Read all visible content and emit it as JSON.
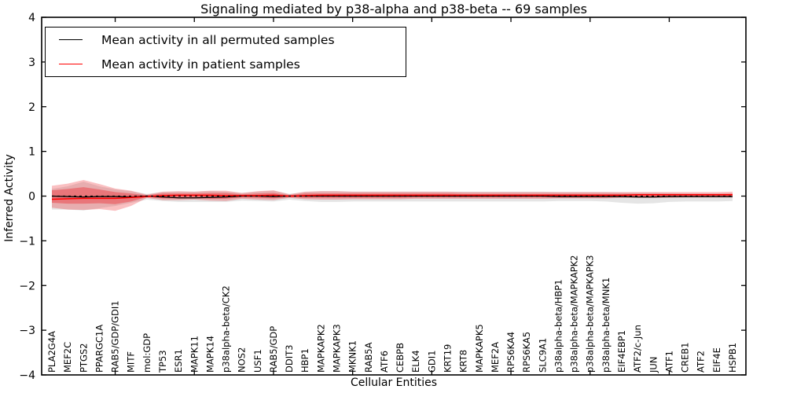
{
  "title": "Signaling mediated by p38-alpha and p38-beta -- 69 samples",
  "legend": {
    "items": [
      {
        "label": "Mean activity in all permuted samples",
        "color": "#000000"
      },
      {
        "label": "Mean activity in patient samples",
        "color": "#ff0000"
      }
    ]
  },
  "chart_data": {
    "type": "line",
    "title": "Signaling mediated by p38-alpha and p38-beta -- 69 samples",
    "xlabel": "Cellular Entities",
    "ylabel": "Inferred Activity",
    "ylim": [
      -4,
      4
    ],
    "grid": false,
    "legend_position": "upper-left",
    "ytick_values": [
      4,
      3,
      2,
      1,
      0,
      -1,
      -2,
      -3,
      -4
    ],
    "ytick_labels": [
      "4",
      "3",
      "2",
      "1",
      "0",
      "−1",
      "−2",
      "−3",
      "−4"
    ],
    "xtick_indices": [
      4,
      9,
      14,
      19,
      24,
      29,
      34,
      39
    ],
    "categories": [
      "PLA2G4A",
      "MEF2C",
      "PTGS2",
      "PPARGC1A",
      "RAB5/GDP/GDI1",
      "MITF",
      "mol:GDP",
      "TP53",
      "ESR1",
      "MAPK11",
      "MAPK14",
      "p38alpha-beta/CK2",
      "NOS2",
      "USF1",
      "RAB5/GDP",
      "DDIT3",
      "HBP1",
      "MAPKAPK2",
      "MAPKAPK3",
      "MKNK1",
      "RAB5A",
      "ATF6",
      "CEBPB",
      "ELK4",
      "GDI1",
      "KRT19",
      "KRT8",
      "MAPKAPK5",
      "MEF2A",
      "RPS6KA4",
      "RPS6KA5",
      "SLC9A1",
      "p38alpha-beta/HBP1",
      "p38alpha-beta/MAPKAPK2",
      "p38alpha-beta/MAPKAPK3",
      "p38alpha-beta/MNK1",
      "EIF4EBP1",
      "ATF2/c-Jun",
      "JUN",
      "ATF1",
      "CREB1",
      "ATF2",
      "EIF4E",
      "HSPB1"
    ],
    "series": [
      {
        "name": "Mean activity in all permuted samples",
        "color": "#000000",
        "values": [
          0,
          -0.01,
          -0.02,
          -0.01,
          -0.01,
          -0.02,
          0,
          -0.02,
          -0.04,
          -0.04,
          -0.03,
          -0.02,
          0,
          0,
          -0.01,
          0,
          0,
          0,
          0,
          0,
          0,
          0,
          0,
          0,
          0,
          0,
          0,
          0,
          0,
          0,
          0,
          0,
          -0.01,
          -0.01,
          -0.01,
          -0.01,
          -0.01,
          -0.02,
          -0.02,
          -0.01,
          -0.01,
          -0.01,
          -0.01,
          -0.01
        ]
      },
      {
        "name": "Mean activity in patient samples",
        "color": "#ff0000",
        "values": [
          -0.07,
          -0.06,
          -0.05,
          -0.05,
          -0.05,
          -0.03,
          -0.01,
          0.01,
          0.02,
          0.02,
          0.02,
          0.01,
          0.01,
          0.01,
          0.02,
          0,
          0.01,
          0.02,
          0.02,
          0.02,
          0.02,
          0.02,
          0.02,
          0.02,
          0.02,
          0.02,
          0.02,
          0.02,
          0.02,
          0.02,
          0.02,
          0.02,
          0.02,
          0.02,
          0.02,
          0.02,
          0.02,
          0.03,
          0.03,
          0.03,
          0.03,
          0.03,
          0.03,
          0.03
        ]
      }
    ],
    "bands": [
      {
        "name": "permuted-samples-range",
        "color": "rgba(110,110,110,0.18)",
        "upper": [
          0.16,
          0.22,
          0.32,
          0.22,
          0.15,
          0.11,
          0.05,
          0.09,
          0.1,
          0.1,
          0.11,
          0.1,
          0.07,
          0.1,
          0.12,
          0.05,
          0.09,
          0.11,
          0.11,
          0.1,
          0.1,
          0.1,
          0.1,
          0.1,
          0.1,
          0.1,
          0.1,
          0.1,
          0.1,
          0.1,
          0.1,
          0.1,
          0.09,
          0.09,
          0.09,
          0.09,
          0.08,
          0.08,
          0.08,
          0.07,
          0.06,
          0.06,
          0.06,
          0.05
        ],
        "lower": [
          -0.3,
          -0.3,
          -0.32,
          -0.27,
          -0.22,
          -0.15,
          -0.08,
          -0.11,
          -0.13,
          -0.13,
          -0.13,
          -0.13,
          -0.1,
          -0.11,
          -0.12,
          -0.08,
          -0.11,
          -0.13,
          -0.13,
          -0.12,
          -0.12,
          -0.12,
          -0.12,
          -0.12,
          -0.12,
          -0.12,
          -0.12,
          -0.12,
          -0.12,
          -0.12,
          -0.12,
          -0.12,
          -0.11,
          -0.11,
          -0.11,
          -0.12,
          -0.15,
          -0.17,
          -0.16,
          -0.13,
          -0.12,
          -0.12,
          -0.12,
          -0.11
        ]
      },
      {
        "name": "patient-samples-range-outer",
        "color": "rgba(237,28,36,0.28)",
        "upper": [
          0.23,
          0.28,
          0.36,
          0.27,
          0.17,
          0.12,
          0.03,
          0.1,
          0.11,
          0.1,
          0.12,
          0.12,
          0.07,
          0.11,
          0.13,
          0.04,
          0.1,
          0.11,
          0.11,
          0.1,
          0.1,
          0.1,
          0.1,
          0.1,
          0.1,
          0.1,
          0.09,
          0.09,
          0.09,
          0.09,
          0.09,
          0.09,
          0.09,
          0.09,
          0.09,
          0.09,
          0.09,
          0.09,
          0.09,
          0.09,
          0.09,
          0.09,
          0.09,
          0.1
        ],
        "lower": [
          -0.26,
          -0.3,
          -0.31,
          -0.29,
          -0.33,
          -0.22,
          -0.04,
          -0.09,
          -0.09,
          -0.08,
          -0.1,
          -0.11,
          -0.06,
          -0.08,
          -0.09,
          -0.04,
          -0.07,
          -0.08,
          -0.08,
          -0.07,
          -0.07,
          -0.07,
          -0.07,
          -0.06,
          -0.06,
          -0.06,
          -0.06,
          -0.06,
          -0.06,
          -0.06,
          -0.06,
          -0.06,
          -0.05,
          -0.05,
          -0.05,
          -0.05,
          -0.04,
          -0.04,
          -0.04,
          -0.04,
          -0.03,
          -0.03,
          -0.03,
          -0.03
        ]
      },
      {
        "name": "patient-samples-range-inner",
        "color": "rgba(237,28,36,0.38)",
        "upper": [
          0.13,
          0.16,
          0.2,
          0.15,
          0.09,
          0.06,
          0.02,
          0.06,
          0.06,
          0.06,
          0.07,
          0.07,
          0.04,
          0.06,
          0.07,
          0.02,
          0.06,
          0.06,
          0.06,
          0.06,
          0.06,
          0.06,
          0.06,
          0.06,
          0.06,
          0.06,
          0.05,
          0.05,
          0.05,
          0.05,
          0.05,
          0.05,
          0.05,
          0.05,
          0.05,
          0.05,
          0.05,
          0.05,
          0.05,
          0.05,
          0.05,
          0.05,
          0.05,
          0.06
        ],
        "lower": [
          -0.15,
          -0.17,
          -0.17,
          -0.16,
          -0.18,
          -0.12,
          -0.02,
          -0.05,
          -0.05,
          -0.04,
          -0.06,
          -0.06,
          -0.03,
          -0.04,
          -0.05,
          -0.02,
          -0.04,
          -0.04,
          -0.04,
          -0.04,
          -0.04,
          -0.04,
          -0.04,
          -0.03,
          -0.03,
          -0.03,
          -0.03,
          -0.03,
          -0.03,
          -0.03,
          -0.03,
          -0.03,
          -0.03,
          -0.03,
          -0.03,
          -0.03,
          -0.02,
          -0.02,
          -0.02,
          -0.02,
          -0.02,
          -0.02,
          -0.02,
          -0.02
        ]
      }
    ],
    "zero_line": {
      "y": 0,
      "style": "dashed",
      "color": "#000000"
    }
  },
  "colors": {
    "axis": "#000000",
    "background": "#ffffff",
    "permuted_line": "#000000",
    "patient_line": "#ff0000"
  }
}
